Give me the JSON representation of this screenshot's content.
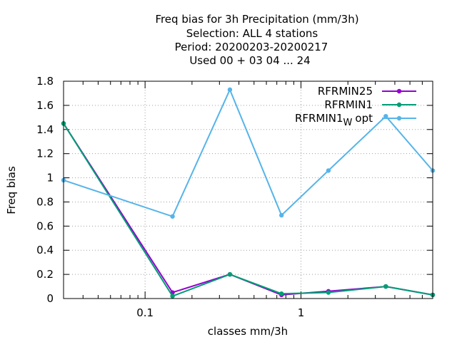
{
  "chart_data": {
    "type": "line",
    "title_lines": [
      "Freq bias  for 3h Precipitation (mm/3h)",
      "Selection: ALL      4 stations",
      "Period: 20200203-20200217",
      "Used  00 + 03 04 ... 24"
    ],
    "xlabel": "classes mm/3h",
    "ylabel": "Freq bias",
    "x_scale": "log",
    "xlim": [
      0.03,
      7
    ],
    "ylim": [
      0,
      1.8
    ],
    "grid": true,
    "legend_position": "top-right",
    "x_ticks": [
      {
        "value": 0.1,
        "label": "0.1"
      },
      {
        "value": 1,
        "label": "1"
      }
    ],
    "y_ticks": [
      {
        "value": 0,
        "label": "0"
      },
      {
        "value": 0.2,
        "label": "0.2"
      },
      {
        "value": 0.4,
        "label": "0.4"
      },
      {
        "value": 0.6,
        "label": "0.6"
      },
      {
        "value": 0.8,
        "label": "0.8"
      },
      {
        "value": 1.0,
        "label": "1"
      },
      {
        "value": 1.2,
        "label": "1.2"
      },
      {
        "value": 1.4,
        "label": "1.4"
      },
      {
        "value": 1.6,
        "label": "1.6"
      },
      {
        "value": 1.8,
        "label": "1.8"
      }
    ],
    "series": [
      {
        "name": "RFRMIN25",
        "color": "#9400d3",
        "x": [
          0.03,
          0.15,
          0.35,
          0.75,
          1.5,
          3.5,
          7
        ],
        "y": [
          1.45,
          0.05,
          0.2,
          0.03,
          0.06,
          0.1,
          0.03
        ]
      },
      {
        "name": "RFRMIN1",
        "color": "#009e73",
        "x": [
          0.03,
          0.15,
          0.35,
          0.75,
          1.5,
          3.5,
          7
        ],
        "y": [
          1.45,
          0.02,
          0.2,
          0.04,
          0.05,
          0.1,
          0.03
        ]
      },
      {
        "name": "RFRMIN1",
        "name_subscript": "W",
        "name_suffix": "opt",
        "color": "#56b4e9",
        "x": [
          0.03,
          0.15,
          0.35,
          0.75,
          1.5,
          3.5,
          7
        ],
        "y": [
          0.98,
          0.68,
          1.73,
          0.69,
          1.06,
          1.51,
          1.06
        ]
      }
    ]
  }
}
